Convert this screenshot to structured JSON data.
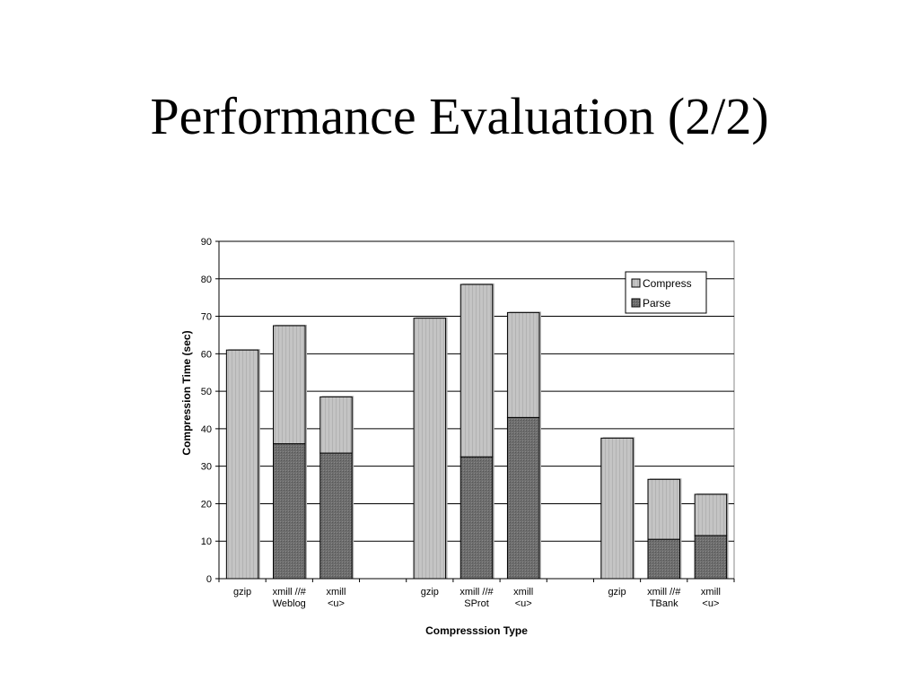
{
  "slide": {
    "title": "Performance Evaluation (2/2)"
  },
  "colors": {
    "compress": "#c4c4c4",
    "parse": "#6e6e6e",
    "stroke": "#000000",
    "grid": "#000000"
  },
  "chart_data": {
    "type": "bar",
    "stacked": true,
    "title": "",
    "xlabel": "Compresssion Type",
    "ylabel": "Compression Time (sec)",
    "ylim": [
      0,
      90
    ],
    "yticks": [
      0,
      10,
      20,
      30,
      40,
      50,
      60,
      70,
      80,
      90
    ],
    "grid": true,
    "legend_position": "top-right",
    "groups": [
      {
        "categories": [
          {
            "line1": "gzip",
            "line2": ""
          },
          {
            "line1": "xmill //#",
            "line2": "Weblog"
          },
          {
            "line1": "xmill",
            "line2": "<u>"
          }
        ]
      },
      {
        "categories": [
          {
            "line1": "gzip",
            "line2": ""
          },
          {
            "line1": "xmill //#",
            "line2": "SProt"
          },
          {
            "line1": "xmill",
            "line2": "<u>"
          }
        ]
      },
      {
        "categories": [
          {
            "line1": "gzip",
            "line2": ""
          },
          {
            "line1": "xmill //#",
            "line2": "TBank"
          },
          {
            "line1": "xmill",
            "line2": "<u>"
          }
        ]
      }
    ],
    "series": [
      {
        "name": "Parse",
        "values": [
          0,
          36,
          33.5,
          0,
          32.5,
          43,
          0,
          10.5,
          11.5
        ]
      },
      {
        "name": "Compress",
        "values": [
          61,
          31.5,
          15,
          69.5,
          46,
          28,
          37.5,
          16,
          11
        ]
      }
    ]
  }
}
